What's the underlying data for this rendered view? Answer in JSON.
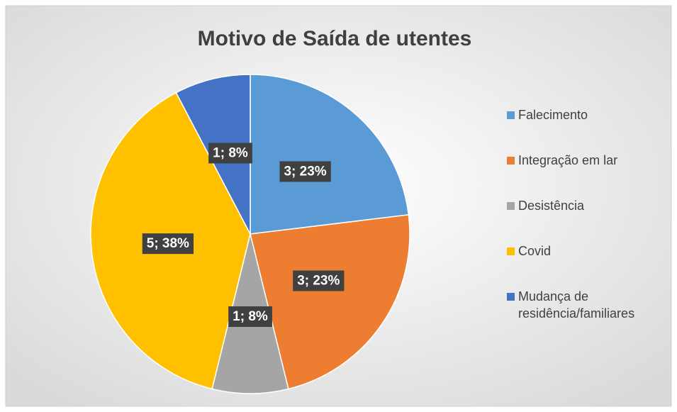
{
  "chart_data": {
    "type": "pie",
    "title": "Motivo de Saída de utentes",
    "categories": [
      "Falecimento",
      "Integração em lar",
      "Desistência",
      "Covid",
      "Mudança de residência/familiares"
    ],
    "values": [
      3,
      3,
      1,
      5,
      1
    ],
    "value_labels": [
      "3; 23%",
      "3; 23%",
      "1; 8%",
      "5; 38%",
      "1; 8%"
    ],
    "colors": [
      "#5b9bd5",
      "#ed7d31",
      "#a5a5a5",
      "#ffc000",
      "#4472c4"
    ],
    "legend": "right"
  }
}
